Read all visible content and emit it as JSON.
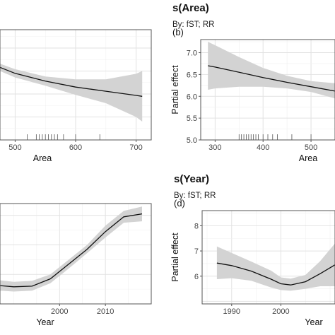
{
  "chart_data": [
    {
      "type": "line",
      "panel": "a",
      "tag": "",
      "title": "",
      "subtitle": "",
      "xlabel": "Area",
      "ylabel": "",
      "xlim": [
        475,
        725
      ],
      "ylim": [
        5.0,
        7.4
      ],
      "xticks": [
        500,
        600,
        700
      ],
      "yticks": [],
      "x": [
        475,
        500,
        550,
        600,
        650,
        700,
        710
      ],
      "y": [
        6.58,
        6.45,
        6.28,
        6.15,
        6.06,
        5.97,
        5.95
      ],
      "ci_low": [
        6.5,
        6.36,
        6.18,
        5.98,
        5.8,
        5.5,
        5.4
      ],
      "ci_high": [
        6.66,
        6.54,
        6.38,
        6.32,
        6.32,
        6.44,
        6.5
      ],
      "rug": [
        520,
        535,
        540,
        545,
        550,
        555,
        560,
        565,
        570,
        580,
        600,
        640
      ],
      "grid": true
    },
    {
      "type": "line",
      "panel": "b",
      "tag": "(b)",
      "title": "s(Area)",
      "subtitle": "By: fST; RR",
      "xlabel": "Area",
      "ylabel": "Partial effect",
      "xlim": [
        270,
        550
      ],
      "ylim": [
        5.0,
        7.3
      ],
      "xticks": [
        300,
        400,
        500
      ],
      "yticks": [
        5.0,
        5.5,
        6.0,
        6.5,
        7.0
      ],
      "x": [
        285,
        300,
        350,
        400,
        450,
        500,
        550
      ],
      "y": [
        6.7,
        6.67,
        6.55,
        6.43,
        6.32,
        6.22,
        6.12
      ],
      "ci_low": [
        6.15,
        6.18,
        6.22,
        6.22,
        6.18,
        6.1,
        5.95
      ],
      "ci_high": [
        7.25,
        7.17,
        6.9,
        6.65,
        6.47,
        6.35,
        6.3
      ],
      "rug": [
        350,
        355,
        360,
        365,
        370,
        375,
        380,
        385,
        390,
        400,
        410,
        420,
        430,
        460,
        500
      ],
      "grid": true
    },
    {
      "type": "line",
      "panel": "c",
      "tag": "",
      "title": "",
      "subtitle": "",
      "xlabel": "Year",
      "ylabel": "",
      "xlim": [
        1987,
        2020
      ],
      "ylim": [
        5.0,
        8.4
      ],
      "xticks": [
        2000,
        2010
      ],
      "yticks": [],
      "x": [
        1987,
        1990,
        1994,
        1998,
        2002,
        2006,
        2010,
        2014,
        2018
      ],
      "y": [
        5.62,
        5.58,
        5.6,
        5.85,
        6.35,
        6.85,
        7.45,
        7.95,
        8.05
      ],
      "ci_low": [
        5.45,
        5.42,
        5.45,
        5.7,
        6.2,
        6.72,
        7.25,
        7.75,
        7.8
      ],
      "ci_high": [
        5.8,
        5.75,
        5.78,
        6.0,
        6.5,
        7.0,
        7.65,
        8.15,
        8.3
      ],
      "grid": true
    },
    {
      "type": "line",
      "panel": "d",
      "tag": "(d)",
      "title": "s(Year)",
      "subtitle": "By: fST; RR",
      "xlabel": "Year",
      "ylabel": "Partial effect",
      "xlim": [
        1984,
        2011
      ],
      "ylim": [
        4.9,
        8.6
      ],
      "xticks": [
        1990,
        2000
      ],
      "yticks": [
        6,
        7,
        8
      ],
      "x": [
        1987,
        1990,
        1994,
        1998,
        2000,
        2002,
        2005,
        2008,
        2011
      ],
      "y": [
        6.52,
        6.42,
        6.2,
        5.88,
        5.7,
        5.65,
        5.78,
        6.1,
        6.45
      ],
      "ci_low": [
        5.88,
        5.92,
        5.82,
        5.55,
        5.45,
        5.42,
        5.5,
        5.6,
        5.6
      ],
      "ci_high": [
        7.18,
        6.92,
        6.58,
        6.22,
        5.95,
        5.9,
        6.05,
        6.6,
        7.3
      ],
      "grid": true
    }
  ]
}
